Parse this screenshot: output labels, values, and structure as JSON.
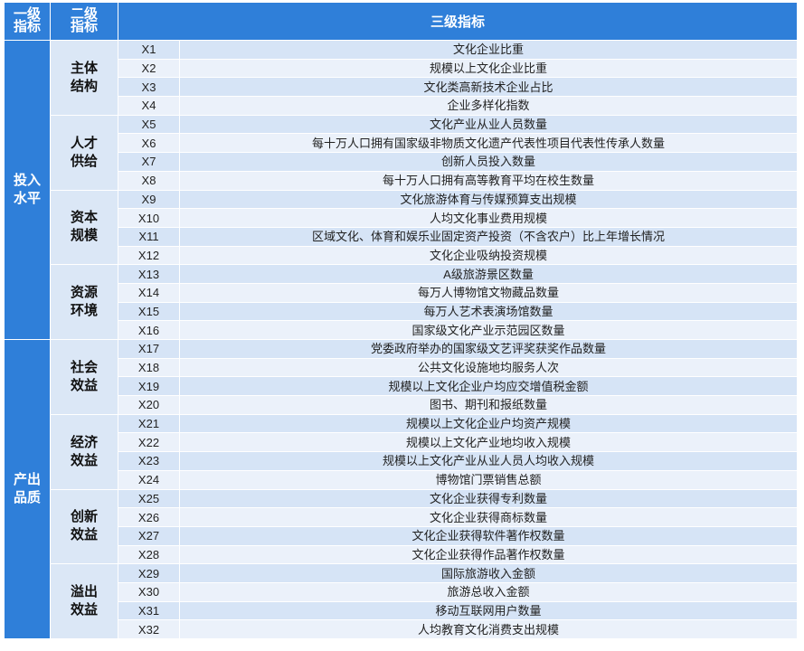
{
  "header": {
    "level1": "一级指标",
    "level2": "二级指标",
    "level3": "三级指标"
  },
  "groups": [
    {
      "name": "投入水平",
      "subgroups": [
        {
          "name": "主体结构",
          "items": [
            [
              "X1",
              "文化企业比重"
            ],
            [
              "X2",
              "规模以上文化企业比重"
            ],
            [
              "X3",
              "文化类高新技术企业占比"
            ],
            [
              "X4",
              "企业多样化指数"
            ]
          ]
        },
        {
          "name": "人才供给",
          "items": [
            [
              "X5",
              "文化产业从业人员数量"
            ],
            [
              "X6",
              "每十万人口拥有国家级非物质文化遗产代表性项目代表性传承人数量"
            ],
            [
              "X7",
              "创新人员投入数量"
            ],
            [
              "X8",
              "每十万人口拥有高等教育平均在校生数量"
            ]
          ]
        },
        {
          "name": "资本规模",
          "items": [
            [
              "X9",
              "文化旅游体育与传媒预算支出规模"
            ],
            [
              "X10",
              "人均文化事业费用规模"
            ],
            [
              "X11",
              "区域文化、体育和娱乐业固定资产投资（不含农户）比上年增长情况"
            ],
            [
              "X12",
              "文化企业吸纳投资规模"
            ]
          ]
        },
        {
          "name": "资源环境",
          "items": [
            [
              "X13",
              "A级旅游景区数量"
            ],
            [
              "X14",
              "每万人博物馆文物藏品数量"
            ],
            [
              "X15",
              "每万人艺术表演场馆数量"
            ],
            [
              "X16",
              "国家级文化产业示范园区数量"
            ]
          ]
        }
      ]
    },
    {
      "name": "产出品质",
      "subgroups": [
        {
          "name": "社会效益",
          "items": [
            [
              "X17",
              "党委政府举办的国家级文艺评奖获奖作品数量"
            ],
            [
              "X18",
              "公共文化设施地均服务人次"
            ],
            [
              "X19",
              "规模以上文化企业户均应交增值税金额"
            ],
            [
              "X20",
              "图书、期刊和报纸数量"
            ]
          ]
        },
        {
          "name": "经济效益",
          "items": [
            [
              "X21",
              "规模以上文化企业户均资产规模"
            ],
            [
              "X22",
              "规模以上文化产业地均收入规模"
            ],
            [
              "X23",
              "规模以上文化产业从业人员人均收入规模"
            ],
            [
              "X24",
              "博物馆门票销售总额"
            ]
          ]
        },
        {
          "name": "创新效益",
          "items": [
            [
              "X25",
              "文化企业获得专利数量"
            ],
            [
              "X26",
              "文化企业获得商标数量"
            ],
            [
              "X27",
              "文化企业获得软件著作权数量"
            ],
            [
              "X28",
              "文化企业获得作品著作权数量"
            ]
          ]
        },
        {
          "name": "溢出效益",
          "items": [
            [
              "X29",
              "国际旅游收入金额"
            ],
            [
              "X30",
              "旅游总收入金额"
            ],
            [
              "X31",
              "移动互联网用户数量"
            ],
            [
              "X32",
              "人均教育文化消费支出规模"
            ]
          ]
        }
      ]
    }
  ]
}
